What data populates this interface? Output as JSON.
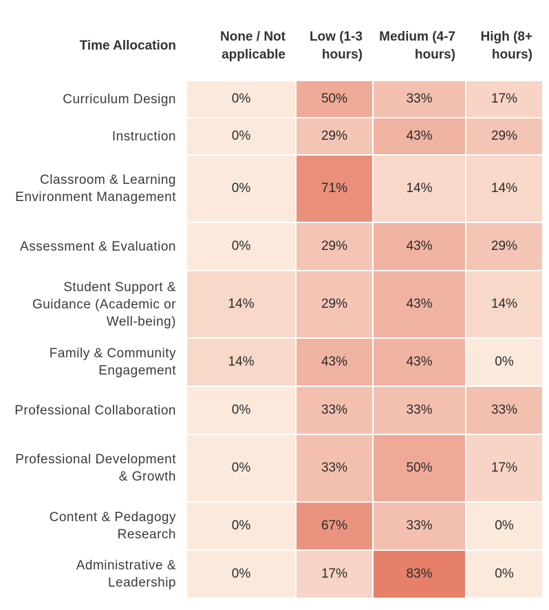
{
  "chart_data": {
    "type": "table",
    "header": "Time Allocation",
    "columns": [
      "None / Not applicable",
      "Low (1-3 hours)",
      "Medium (4-7 hours)",
      "High (8+ hours)"
    ],
    "rows": [
      {
        "label": "Curriculum Design",
        "values": [
          0,
          50,
          33,
          17
        ]
      },
      {
        "label": "Instruction",
        "values": [
          0,
          29,
          43,
          29
        ]
      },
      {
        "label": "Classroom & Learning Environment Management",
        "values": [
          0,
          71,
          14,
          14
        ]
      },
      {
        "label": "Assessment & Evaluation",
        "values": [
          0,
          29,
          43,
          29
        ]
      },
      {
        "label": "Student Support & Guidance (Academic or Well-being)",
        "values": [
          14,
          29,
          43,
          14
        ]
      },
      {
        "label": "Family & Community Engagement",
        "values": [
          14,
          43,
          43,
          0
        ]
      },
      {
        "label": "Professional Collaboration",
        "values": [
          0,
          33,
          33,
          33
        ]
      },
      {
        "label": "Professional Development & Growth",
        "values": [
          0,
          33,
          50,
          17
        ]
      },
      {
        "label": "Content & Pedagogy Research",
        "values": [
          0,
          67,
          33,
          0
        ]
      },
      {
        "label": "Administrative & Leadership",
        "values": [
          0,
          17,
          83,
          0
        ]
      }
    ],
    "value_suffix": "%",
    "color_low": "#fbeadc",
    "color_high": "#e6806a",
    "scale_max": 83
  }
}
